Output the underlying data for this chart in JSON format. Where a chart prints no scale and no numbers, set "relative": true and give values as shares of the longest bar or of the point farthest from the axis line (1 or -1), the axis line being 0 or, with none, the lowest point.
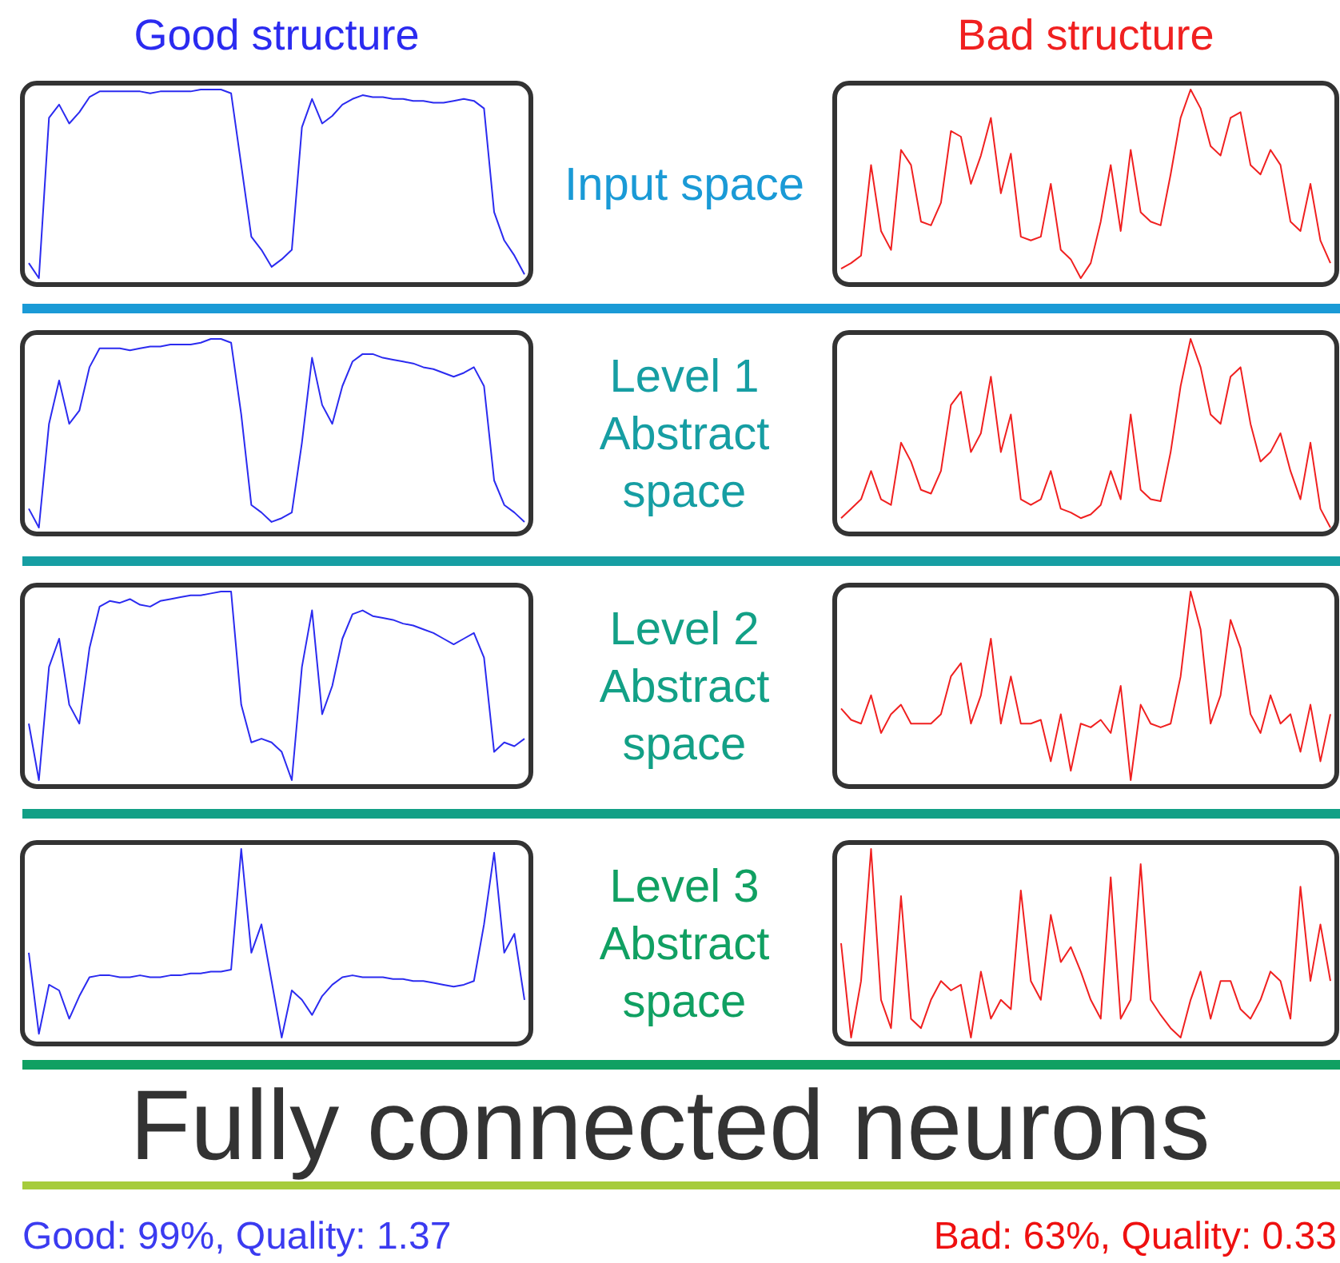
{
  "chart_data": [
    {
      "type": "line",
      "title": "Good structure",
      "relative": true,
      "categories": [
        null,
        null,
        null,
        null,
        null,
        null,
        null,
        null,
        null,
        null,
        null,
        null,
        null,
        null,
        null,
        null,
        null,
        null,
        null,
        null,
        null,
        null,
        null,
        null,
        null,
        null,
        null,
        null,
        null,
        null,
        null,
        null,
        null,
        null,
        null,
        null,
        null,
        null,
        null,
        null,
        null,
        null,
        null,
        null,
        null,
        null,
        null,
        null,
        null,
        null
      ],
      "series": [
        {
          "color": "#2b2bf0",
          "values": [
            0.08,
            0.0,
            0.85,
            0.92,
            0.82,
            0.88,
            0.96,
            0.99,
            0.99,
            0.99,
            0.99,
            0.99,
            0.98,
            0.99,
            0.99,
            0.99,
            0.99,
            1.0,
            1.0,
            1.0,
            0.98,
            0.6,
            0.22,
            0.15,
            0.06,
            0.1,
            0.15,
            0.8,
            0.95,
            0.82,
            0.86,
            0.92,
            0.95,
            0.97,
            0.96,
            0.96,
            0.95,
            0.95,
            0.94,
            0.94,
            0.93,
            0.93,
            0.94,
            0.95,
            0.94,
            0.9,
            0.35,
            0.2,
            0.12,
            0.02
          ]
        }
      ]
    },
    {
      "type": "other",
      "title": "Input space"
    },
    {
      "type": "line",
      "title": "Bad structure",
      "relative": true,
      "categories": [
        null,
        null,
        null,
        null,
        null,
        null,
        null,
        null,
        null,
        null,
        null,
        null,
        null,
        null,
        null,
        null,
        null,
        null,
        null,
        null,
        null,
        null,
        null,
        null,
        null,
        null,
        null,
        null,
        null,
        null,
        null,
        null,
        null,
        null,
        null,
        null,
        null,
        null,
        null,
        null,
        null,
        null,
        null,
        null,
        null,
        null,
        null,
        null,
        null,
        null
      ],
      "series": [
        {
          "color": "#f02020",
          "values": [
            0.05,
            0.08,
            0.12,
            0.6,
            0.25,
            0.15,
            0.68,
            0.6,
            0.3,
            0.28,
            0.4,
            0.78,
            0.75,
            0.5,
            0.65,
            0.85,
            0.45,
            0.66,
            0.22,
            0.2,
            0.22,
            0.5,
            0.15,
            0.1,
            0.0,
            0.08,
            0.3,
            0.6,
            0.25,
            0.68,
            0.35,
            0.3,
            0.28,
            0.55,
            0.85,
            1.0,
            0.9,
            0.7,
            0.65,
            0.85,
            0.88,
            0.6,
            0.55,
            0.68,
            0.6,
            0.3,
            0.25,
            0.5,
            0.2,
            0.08
          ]
        }
      ]
    },
    {
      "type": "line",
      "relative": true,
      "categories": [
        null,
        null,
        null,
        null,
        null,
        null,
        null,
        null,
        null,
        null,
        null,
        null,
        null,
        null,
        null,
        null,
        null,
        null,
        null,
        null,
        null,
        null,
        null,
        null,
        null,
        null,
        null,
        null,
        null,
        null,
        null,
        null,
        null,
        null,
        null,
        null,
        null,
        null,
        null,
        null,
        null,
        null,
        null,
        null,
        null,
        null,
        null,
        null,
        null,
        null
      ],
      "series": [
        {
          "color": "#2b2bf0",
          "values": [
            0.1,
            0.0,
            0.55,
            0.78,
            0.55,
            0.62,
            0.85,
            0.95,
            0.95,
            0.95,
            0.94,
            0.95,
            0.96,
            0.96,
            0.97,
            0.97,
            0.97,
            0.98,
            1.0,
            1.0,
            0.98,
            0.6,
            0.12,
            0.08,
            0.03,
            0.05,
            0.08,
            0.45,
            0.9,
            0.65,
            0.55,
            0.75,
            0.88,
            0.92,
            0.92,
            0.9,
            0.89,
            0.88,
            0.87,
            0.85,
            0.84,
            0.82,
            0.8,
            0.82,
            0.85,
            0.75,
            0.25,
            0.12,
            0.08,
            0.03
          ]
        }
      ]
    },
    {
      "type": "other",
      "title": "Level 1 Abstract space"
    },
    {
      "type": "line",
      "relative": true,
      "categories": [
        null,
        null,
        null,
        null,
        null,
        null,
        null,
        null,
        null,
        null,
        null,
        null,
        null,
        null,
        null,
        null,
        null,
        null,
        null,
        null,
        null,
        null,
        null,
        null,
        null,
        null,
        null,
        null,
        null,
        null,
        null,
        null,
        null,
        null,
        null,
        null,
        null,
        null,
        null,
        null,
        null,
        null,
        null,
        null,
        null,
        null,
        null,
        null,
        null,
        null
      ],
      "series": [
        {
          "color": "#f02020",
          "values": [
            0.05,
            0.1,
            0.15,
            0.3,
            0.15,
            0.12,
            0.45,
            0.35,
            0.2,
            0.18,
            0.3,
            0.65,
            0.72,
            0.4,
            0.5,
            0.8,
            0.4,
            0.6,
            0.15,
            0.12,
            0.15,
            0.3,
            0.1,
            0.08,
            0.05,
            0.07,
            0.12,
            0.3,
            0.15,
            0.6,
            0.2,
            0.15,
            0.14,
            0.4,
            0.75,
            1.0,
            0.85,
            0.6,
            0.55,
            0.8,
            0.85,
            0.55,
            0.35,
            0.4,
            0.5,
            0.3,
            0.15,
            0.45,
            0.1,
            0.0
          ]
        }
      ]
    },
    {
      "type": "line",
      "relative": true,
      "categories": [
        null,
        null,
        null,
        null,
        null,
        null,
        null,
        null,
        null,
        null,
        null,
        null,
        null,
        null,
        null,
        null,
        null,
        null,
        null,
        null,
        null,
        null,
        null,
        null,
        null,
        null,
        null,
        null,
        null,
        null,
        null,
        null,
        null,
        null,
        null,
        null,
        null,
        null,
        null,
        null,
        null,
        null,
        null,
        null,
        null,
        null,
        null,
        null,
        null,
        null
      ],
      "series": [
        {
          "color": "#2b2bf0",
          "values": [
            0.3,
            0.0,
            0.6,
            0.75,
            0.4,
            0.3,
            0.7,
            0.92,
            0.95,
            0.94,
            0.96,
            0.93,
            0.92,
            0.95,
            0.96,
            0.97,
            0.98,
            0.98,
            0.99,
            1.0,
            1.0,
            0.4,
            0.2,
            0.22,
            0.2,
            0.15,
            0.0,
            0.6,
            0.9,
            0.35,
            0.5,
            0.75,
            0.88,
            0.9,
            0.87,
            0.86,
            0.85,
            0.83,
            0.82,
            0.8,
            0.78,
            0.75,
            0.72,
            0.75,
            0.78,
            0.65,
            0.15,
            0.2,
            0.18,
            0.22
          ]
        }
      ]
    },
    {
      "type": "other",
      "title": "Level 2 Abstract space"
    },
    {
      "type": "line",
      "relative": true,
      "categories": [
        null,
        null,
        null,
        null,
        null,
        null,
        null,
        null,
        null,
        null,
        null,
        null,
        null,
        null,
        null,
        null,
        null,
        null,
        null,
        null,
        null,
        null,
        null,
        null,
        null,
        null,
        null,
        null,
        null,
        null,
        null,
        null,
        null,
        null,
        null,
        null,
        null,
        null,
        null,
        null,
        null,
        null,
        null,
        null,
        null,
        null,
        null,
        null,
        null,
        null
      ],
      "series": [
        {
          "color": "#f02020",
          "values": [
            0.38,
            0.32,
            0.3,
            0.45,
            0.25,
            0.35,
            0.4,
            0.3,
            0.3,
            0.3,
            0.35,
            0.55,
            0.62,
            0.3,
            0.45,
            0.75,
            0.3,
            0.55,
            0.3,
            0.3,
            0.32,
            0.1,
            0.35,
            0.05,
            0.3,
            0.28,
            0.32,
            0.25,
            0.5,
            0.0,
            0.4,
            0.3,
            0.28,
            0.3,
            0.55,
            1.0,
            0.8,
            0.3,
            0.45,
            0.85,
            0.7,
            0.35,
            0.25,
            0.45,
            0.3,
            0.35,
            0.15,
            0.4,
            0.1,
            0.35
          ]
        }
      ]
    },
    {
      "type": "line",
      "relative": true,
      "categories": [
        null,
        null,
        null,
        null,
        null,
        null,
        null,
        null,
        null,
        null,
        null,
        null,
        null,
        null,
        null,
        null,
        null,
        null,
        null,
        null,
        null,
        null,
        null,
        null,
        null,
        null,
        null,
        null,
        null,
        null,
        null,
        null,
        null,
        null,
        null,
        null,
        null,
        null,
        null,
        null,
        null,
        null,
        null,
        null,
        null,
        null,
        null,
        null,
        null,
        null
      ],
      "series": [
        {
          "color": "#2b2bf0",
          "values": [
            0.45,
            0.02,
            0.28,
            0.25,
            0.1,
            0.22,
            0.32,
            0.33,
            0.33,
            0.32,
            0.32,
            0.33,
            0.32,
            0.32,
            0.33,
            0.33,
            0.34,
            0.34,
            0.35,
            0.35,
            0.36,
            1.0,
            0.45,
            0.6,
            0.3,
            0.0,
            0.25,
            0.2,
            0.12,
            0.22,
            0.28,
            0.32,
            0.33,
            0.32,
            0.32,
            0.32,
            0.31,
            0.31,
            0.3,
            0.3,
            0.29,
            0.28,
            0.27,
            0.28,
            0.3,
            0.6,
            0.98,
            0.45,
            0.55,
            0.2
          ]
        }
      ]
    },
    {
      "type": "other",
      "title": "Level 3 Abstract space"
    },
    {
      "type": "line",
      "relative": true,
      "categories": [
        null,
        null,
        null,
        null,
        null,
        null,
        null,
        null,
        null,
        null,
        null,
        null,
        null,
        null,
        null,
        null,
        null,
        null,
        null,
        null,
        null,
        null,
        null,
        null,
        null,
        null,
        null,
        null,
        null,
        null,
        null,
        null,
        null,
        null,
        null,
        null,
        null,
        null,
        null,
        null,
        null,
        null,
        null,
        null,
        null,
        null,
        null,
        null,
        null,
        null
      ],
      "series": [
        {
          "color": "#f02020",
          "values": [
            0.5,
            0.0,
            0.3,
            1.0,
            0.2,
            0.05,
            0.75,
            0.1,
            0.05,
            0.2,
            0.3,
            0.25,
            0.28,
            0.0,
            0.35,
            0.1,
            0.2,
            0.15,
            0.78,
            0.3,
            0.2,
            0.65,
            0.4,
            0.48,
            0.35,
            0.2,
            0.1,
            0.85,
            0.1,
            0.2,
            0.92,
            0.2,
            0.12,
            0.05,
            0.0,
            0.2,
            0.35,
            0.1,
            0.3,
            0.3,
            0.15,
            0.1,
            0.2,
            0.35,
            0.3,
            0.1,
            0.8,
            0.3,
            0.6,
            0.3
          ]
        }
      ]
    },
    {
      "type": "other",
      "title": "Fully connected neurons",
      "annotations": [
        "Good: 99%, Quality: 1.37",
        "Bad: 63%, Quality: 0.33"
      ]
    }
  ]
}
